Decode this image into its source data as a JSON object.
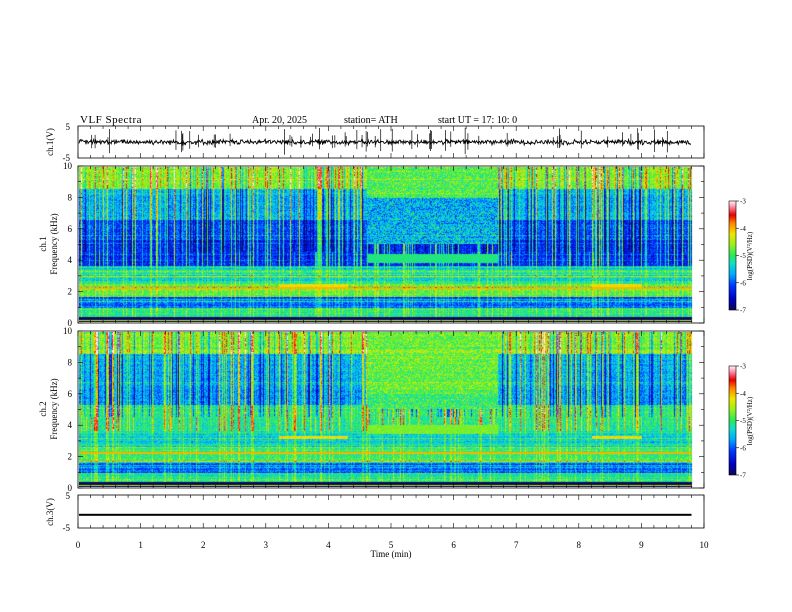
{
  "header": {
    "title": "VLF  Spectra",
    "date": "Apr. 20, 2025",
    "station": "station= ATH",
    "start": "start  UT  =    17: 10: 0"
  },
  "colors": {
    "waveform": "#000000",
    "colormap": [
      "#0a0a80",
      "#0022ff",
      "#00aaff",
      "#22e0b0",
      "#44ee44",
      "#e8e800",
      "#ff8800",
      "#ee0000",
      "#ff99bb",
      "#ffffff"
    ]
  },
  "chart_data": [
    {
      "type": "line",
      "panel": "ch1-waveform",
      "ylabel": "ch.1(V)",
      "ylim": [
        -5,
        5
      ],
      "yticks": [
        "5",
        "-5"
      ],
      "xlim": [
        0,
        10
      ],
      "description_values": {
        "baseline": 0.0,
        "noise_amplitude": 1.2,
        "spike_amplitude": 4.5
      }
    },
    {
      "type": "heatmap",
      "panel": "ch1-spectrogram",
      "ylabel": "ch.1\nFrequency (kHz)",
      "ylabel_line1": "ch.1",
      "ylabel_line2": "Frequency (kHz)",
      "ylim": [
        0,
        10
      ],
      "yticks": [
        "0",
        "2",
        "4",
        "6",
        "8",
        "10"
      ],
      "xlim": [
        0,
        10
      ],
      "colorbar": {
        "label": "log(PSD)(V²/Hz)",
        "range": [
          -7,
          -3
        ],
        "ticks": [
          "-3",
          "-4",
          "-5",
          "-6",
          "-7"
        ]
      },
      "features": [
        {
          "label": "quiet interval",
          "t_start": 4.6,
          "t_end": 6.7
        },
        {
          "label": "band",
          "t_start": 4.6,
          "t_end": 6.7,
          "f_low": 3.8,
          "f_high": 4.4,
          "log_psd": -5.1
        },
        {
          "label": "line",
          "t_start": 3.2,
          "t_end": 4.3,
          "f": 2.3,
          "log_psd": -4.2
        },
        {
          "label": "line",
          "t_start": 8.2,
          "t_end": 9.0,
          "f": 2.3,
          "log_psd": -4.2
        }
      ]
    },
    {
      "type": "heatmap",
      "panel": "ch2-spectrogram",
      "ylabel_line1": "ch.2",
      "ylabel_line2": "Frequency (kHz)",
      "ylim": [
        0,
        10
      ],
      "yticks": [
        "0",
        "2",
        "4",
        "6",
        "8",
        "10"
      ],
      "xlim": [
        0,
        10
      ],
      "colorbar": {
        "label": "log(PSD)(V²/Hz)",
        "range": [
          -7,
          -3
        ],
        "ticks": [
          "-3",
          "-4",
          "-5",
          "-6",
          "-7"
        ]
      },
      "features": [
        {
          "label": "quiet interval",
          "t_start": 4.6,
          "t_end": 6.7
        },
        {
          "label": "band",
          "t_start": 4.6,
          "t_end": 6.7,
          "f_low": 3.4,
          "f_high": 4.0,
          "log_psd": -4.7
        },
        {
          "label": "line",
          "t_start": 3.2,
          "t_end": 4.3,
          "f": 3.2,
          "log_psd": -4.2
        },
        {
          "label": "line",
          "t_start": 8.2,
          "t_end": 9.0,
          "f": 3.2,
          "log_psd": -4.2
        }
      ]
    },
    {
      "type": "line",
      "panel": "ch3-waveform",
      "ylabel": "ch.3(V)",
      "ylim": [
        -5,
        5
      ],
      "yticks": [
        "5",
        "-5"
      ],
      "xlim": [
        0,
        10
      ],
      "description_values": {
        "level": -1.0,
        "band_thickness": 0.6
      }
    }
  ],
  "xaxis": {
    "label": "Time  (min)",
    "ticks": [
      "0",
      "1",
      "2",
      "3",
      "4",
      "5",
      "6",
      "7",
      "8",
      "9",
      "10"
    ],
    "data_end": 9.8
  }
}
